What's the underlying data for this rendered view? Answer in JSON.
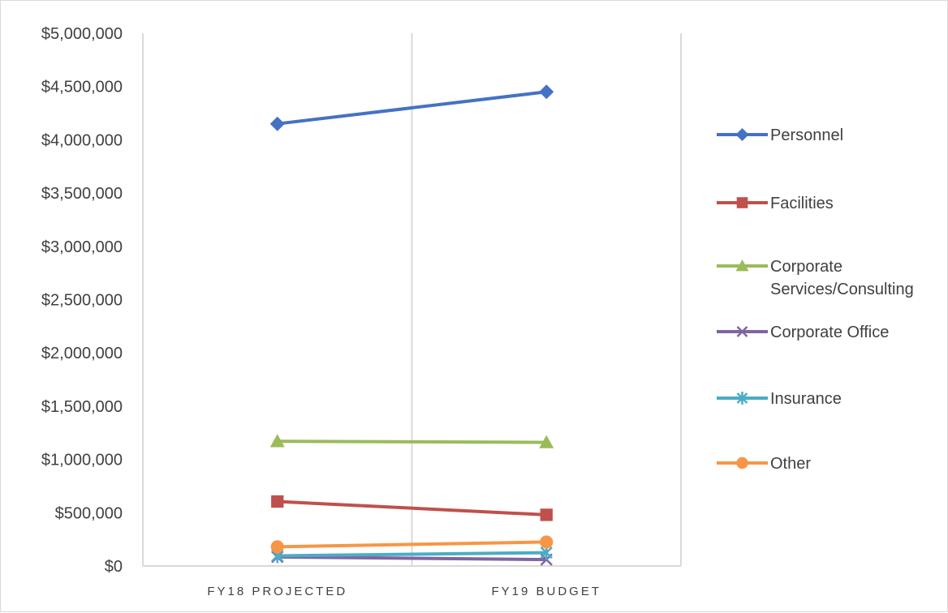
{
  "chart_data": {
    "type": "line",
    "categories": [
      "FY18 PROJECTED",
      "FY19 BUDGET"
    ],
    "ylim": [
      0,
      5000000
    ],
    "yticks": [
      0,
      500000,
      1000000,
      1500000,
      2000000,
      2500000,
      3000000,
      3500000,
      4000000,
      4500000,
      5000000
    ],
    "ytick_labels": [
      "$0",
      "$500,000",
      "$1,000,000",
      "$1,500,000",
      "$2,000,000",
      "$2,500,000",
      "$3,000,000",
      "$3,500,000",
      "$4,000,000",
      "$4,500,000",
      "$5,000,000"
    ],
    "grid": "vertical",
    "legend_position": "right",
    "series": [
      {
        "name": "Personnel",
        "values": [
          4150000,
          4450000
        ],
        "color": "#4472c4",
        "marker": "diamond",
        "legend_lines": [
          "Personnel"
        ]
      },
      {
        "name": "Facilities",
        "values": [
          605000,
          480000
        ],
        "color": "#c0504d",
        "marker": "square",
        "legend_lines": [
          "Facilities"
        ]
      },
      {
        "name": "Corporate Services/Consulting",
        "values": [
          1170000,
          1160000
        ],
        "color": "#9bbb59",
        "marker": "triangle",
        "legend_lines": [
          "Corporate",
          "Services/Consulting"
        ]
      },
      {
        "name": "Corporate Office",
        "values": [
          85000,
          60000
        ],
        "color": "#8064a2",
        "marker": "x",
        "legend_lines": [
          "Corporate Office"
        ]
      },
      {
        "name": "Insurance",
        "values": [
          95000,
          125000
        ],
        "color": "#4bacc6",
        "marker": "star",
        "legend_lines": [
          "Insurance"
        ]
      },
      {
        "name": "Other",
        "values": [
          180000,
          225000
        ],
        "color": "#f79646",
        "marker": "circle",
        "legend_lines": [
          "Other"
        ]
      }
    ]
  }
}
